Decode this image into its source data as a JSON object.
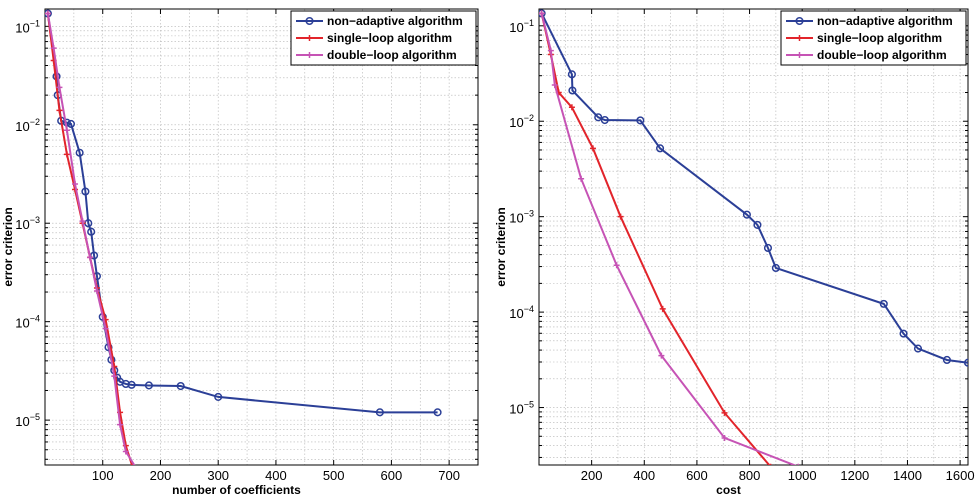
{
  "chart_data": [
    {
      "type": "line",
      "title": "",
      "xlabel": "number of coefficients",
      "ylabel": "error criterion",
      "xlim": [
        0,
        750
      ],
      "ylim": [
        3.5e-06,
        0.15
      ],
      "yscale": "log",
      "grid": true,
      "legend": "top-right",
      "xticks": [
        "100",
        "200",
        "300",
        "400",
        "500",
        "600",
        "700"
      ],
      "yticks": [
        {
          "value": 0.1,
          "base": "10",
          "exp": "−1"
        },
        {
          "value": 0.01,
          "base": "10",
          "exp": "−2"
        },
        {
          "value": 0.001,
          "base": "10",
          "exp": "−3"
        },
        {
          "value": 0.0001,
          "base": "10",
          "exp": "−4"
        },
        {
          "value": 1e-05,
          "base": "10",
          "exp": "−5"
        }
      ],
      "series": [
        {
          "name": "non−adaptive algorithm",
          "color": "#2b3f97",
          "marker": "circle",
          "x": [
            5,
            20,
            22,
            28,
            38,
            45,
            60,
            70,
            75,
            80,
            85,
            90,
            100,
            110,
            115,
            120,
            125,
            130,
            140,
            150,
            180,
            235,
            300,
            580,
            680
          ],
          "y": [
            0.135,
            0.031,
            0.02,
            0.011,
            0.0105,
            0.0102,
            0.0052,
            0.0021,
            0.001,
            0.00082,
            0.00047,
            0.00029,
            0.000112,
            5.5e-05,
            4.1e-05,
            3.2e-05,
            2.7e-05,
            2.45e-05,
            2.33e-05,
            2.28e-05,
            2.25e-05,
            2.22e-05,
            1.72e-05,
            1.2e-05,
            1.2e-05
          ]
        },
        {
          "name": "single−loop algorithm",
          "color": "#e2242b",
          "marker": "plus",
          "x": [
            5,
            15,
            25,
            38,
            52,
            65,
            78,
            90,
            105,
            120,
            130,
            140,
            152
          ],
          "y": [
            0.135,
            0.045,
            0.014,
            0.005,
            0.0022,
            0.001,
            0.00045,
            0.00022,
            0.000105,
            3.5e-05,
            1.2e-05,
            5.5e-06,
            3.3e-06
          ]
        },
        {
          "name": "double−loop algorithm",
          "color": "#c653b5",
          "marker": "plus",
          "x": [
            5,
            15,
            25,
            38,
            52,
            65,
            78,
            90,
            105,
            120,
            130,
            140,
            160
          ],
          "y": [
            0.135,
            0.06,
            0.024,
            0.0088,
            0.0025,
            0.00105,
            0.00045,
            0.000205,
            8.5e-05,
            2.8e-05,
            9e-06,
            4.8e-06,
            3.1e-06
          ]
        }
      ]
    },
    {
      "type": "line",
      "title": "",
      "xlabel": "cost",
      "ylabel": "error criterion",
      "xlim": [
        0,
        1630
      ],
      "ylim": [
        2.5e-06,
        0.15
      ],
      "yscale": "log",
      "grid": true,
      "legend": "top-right",
      "xticks": [
        "200",
        "400",
        "600",
        "800",
        "1000",
        "1200",
        "1400",
        "1600"
      ],
      "yticks": [
        {
          "value": 0.1,
          "base": "10",
          "exp": "−1"
        },
        {
          "value": 0.01,
          "base": "10",
          "exp": "−2"
        },
        {
          "value": 0.001,
          "base": "10",
          "exp": "−3"
        },
        {
          "value": 0.0001,
          "base": "10",
          "exp": "−4"
        },
        {
          "value": 1e-05,
          "base": "10",
          "exp": "−5"
        }
      ],
      "series": [
        {
          "name": "non−adaptive algorithm",
          "color": "#2b3f97",
          "marker": "circle",
          "x": [
            10,
            125,
            127,
            225,
            250,
            385,
            460,
            790,
            830,
            870,
            900,
            1310,
            1385,
            1440,
            1550,
            1630
          ],
          "y": [
            0.135,
            0.031,
            0.021,
            0.011,
            0.0103,
            0.0102,
            0.0052,
            0.00105,
            0.00082,
            0.00047,
            0.00029,
            0.000122,
            5.95e-05,
            4.15e-05,
            3.15e-05,
            2.95e-05
          ]
        },
        {
          "name": "single−loop algorithm",
          "color": "#e2242b",
          "marker": "plus",
          "x": [
            10,
            45,
            75,
            125,
            205,
            310,
            470,
            705,
            880
          ],
          "y": [
            0.135,
            0.05,
            0.02,
            0.014,
            0.0052,
            0.001,
            0.000108,
            8.8e-06,
            2.4e-06
          ]
        },
        {
          "name": "double−loop algorithm",
          "color": "#c653b5",
          "marker": "plus",
          "x": [
            10,
            45,
            60,
            160,
            295,
            465,
            705,
            985
          ],
          "y": [
            0.135,
            0.055,
            0.024,
            0.0025,
            0.00031,
            3.5e-05,
            4.8e-06,
            2.4e-06
          ]
        }
      ]
    }
  ]
}
